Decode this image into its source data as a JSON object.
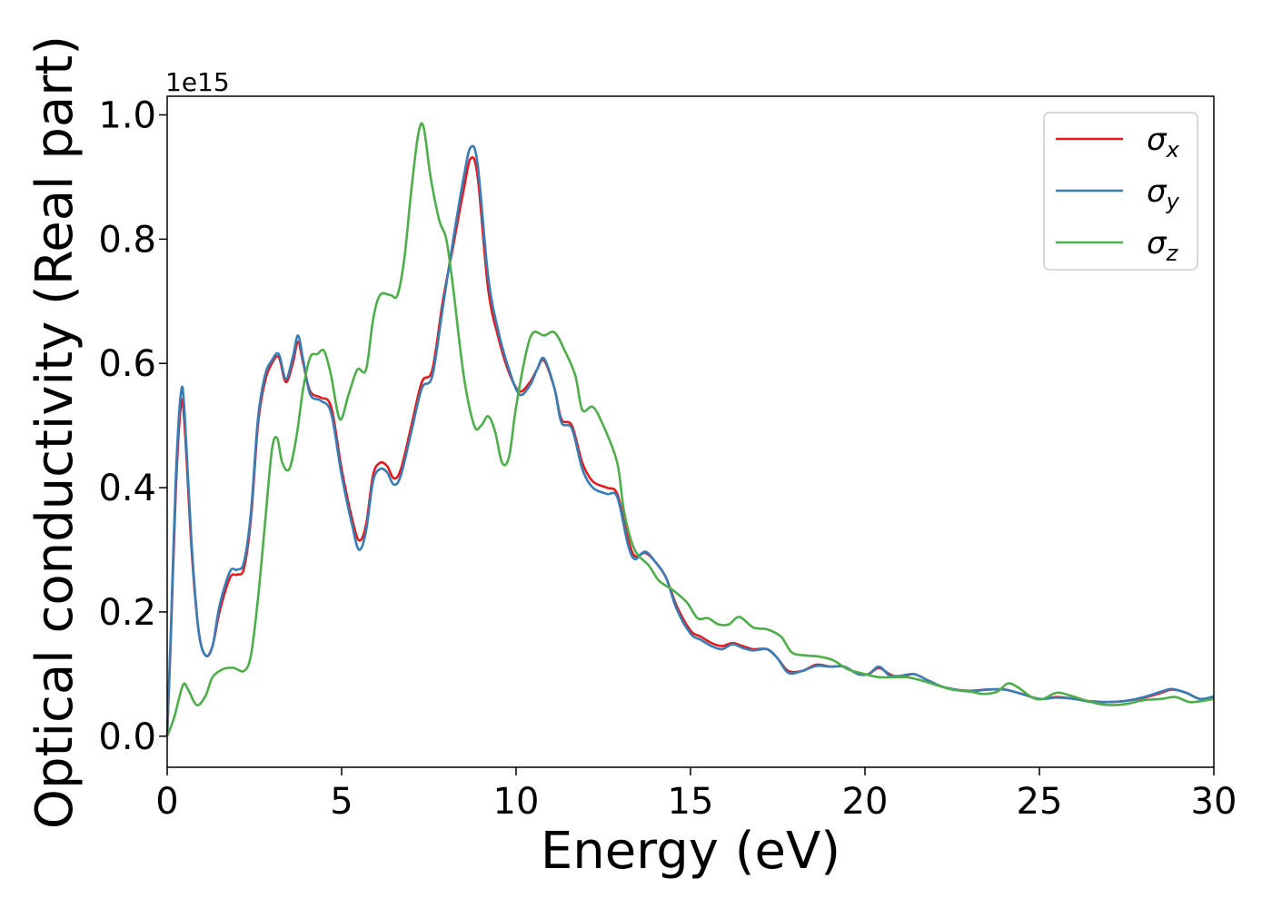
{
  "chart_data": {
    "type": "line",
    "title": "",
    "xlabel": "Energy (eV)",
    "ylabel": "Optical conductivity (Real part)",
    "y_offset_label": "1e15",
    "xlim": [
      0,
      30
    ],
    "ylim": [
      -0.05,
      1.03
    ],
    "x_ticks": [
      0,
      5,
      10,
      15,
      20,
      25,
      30
    ],
    "x_tick_labels": [
      "0",
      "5",
      "10",
      "15",
      "20",
      "25",
      "30"
    ],
    "y_ticks": [
      0.0,
      0.2,
      0.4,
      0.6,
      0.8,
      1.0
    ],
    "y_tick_labels": [
      "0.0",
      "0.2",
      "0.4",
      "0.6",
      "0.8",
      "1.0"
    ],
    "grid": false,
    "legend_position": "top-right",
    "series": [
      {
        "name": "σx",
        "symbol": "σ",
        "subscript": "x",
        "color": "#e41a1c",
        "points": [
          [
            0,
            0
          ],
          [
            0.1,
            0.15
          ],
          [
            0.25,
            0.4
          ],
          [
            0.4,
            0.535
          ],
          [
            0.5,
            0.5
          ],
          [
            0.7,
            0.3
          ],
          [
            0.9,
            0.17
          ],
          [
            1.1,
            0.13
          ],
          [
            1.3,
            0.145
          ],
          [
            1.5,
            0.2
          ],
          [
            1.8,
            0.255
          ],
          [
            2.0,
            0.26
          ],
          [
            2.2,
            0.27
          ],
          [
            2.4,
            0.35
          ],
          [
            2.6,
            0.5
          ],
          [
            2.8,
            0.57
          ],
          [
            3.0,
            0.6
          ],
          [
            3.2,
            0.61
          ],
          [
            3.4,
            0.57
          ],
          [
            3.6,
            0.6
          ],
          [
            3.75,
            0.635
          ],
          [
            3.9,
            0.6
          ],
          [
            4.1,
            0.555
          ],
          [
            4.4,
            0.545
          ],
          [
            4.7,
            0.53
          ],
          [
            5.0,
            0.43
          ],
          [
            5.3,
            0.35
          ],
          [
            5.5,
            0.315
          ],
          [
            5.7,
            0.34
          ],
          [
            5.9,
            0.42
          ],
          [
            6.1,
            0.44
          ],
          [
            6.3,
            0.435
          ],
          [
            6.5,
            0.415
          ],
          [
            6.7,
            0.43
          ],
          [
            7.0,
            0.5
          ],
          [
            7.3,
            0.57
          ],
          [
            7.6,
            0.59
          ],
          [
            7.9,
            0.7
          ],
          [
            8.2,
            0.79
          ],
          [
            8.5,
            0.88
          ],
          [
            8.7,
            0.93
          ],
          [
            8.9,
            0.9
          ],
          [
            9.2,
            0.72
          ],
          [
            9.5,
            0.64
          ],
          [
            9.8,
            0.585
          ],
          [
            10.1,
            0.555
          ],
          [
            10.4,
            0.57
          ],
          [
            10.6,
            0.59
          ],
          [
            10.8,
            0.605
          ],
          [
            11.1,
            0.56
          ],
          [
            11.3,
            0.51
          ],
          [
            11.6,
            0.5
          ],
          [
            11.9,
            0.44
          ],
          [
            12.2,
            0.41
          ],
          [
            12.6,
            0.4
          ],
          [
            12.9,
            0.39
          ],
          [
            13.2,
            0.32
          ],
          [
            13.4,
            0.29
          ],
          [
            13.7,
            0.295
          ],
          [
            14.0,
            0.28
          ],
          [
            14.3,
            0.255
          ],
          [
            14.6,
            0.21
          ],
          [
            15.0,
            0.17
          ],
          [
            15.3,
            0.16
          ],
          [
            15.6,
            0.15
          ],
          [
            15.9,
            0.145
          ],
          [
            16.2,
            0.15
          ],
          [
            16.5,
            0.145
          ],
          [
            16.8,
            0.14
          ],
          [
            17.2,
            0.14
          ],
          [
            17.5,
            0.125
          ],
          [
            17.8,
            0.105
          ],
          [
            18.2,
            0.105
          ],
          [
            18.6,
            0.115
          ],
          [
            19.0,
            0.112
          ],
          [
            19.4,
            0.112
          ],
          [
            19.8,
            0.1
          ],
          [
            20.1,
            0.1
          ],
          [
            20.4,
            0.11
          ],
          [
            20.7,
            0.1
          ],
          [
            21.0,
            0.095
          ],
          [
            21.4,
            0.1
          ],
          [
            21.8,
            0.09
          ],
          [
            22.2,
            0.08
          ],
          [
            22.6,
            0.075
          ],
          [
            23.0,
            0.073
          ],
          [
            23.5,
            0.075
          ],
          [
            24.0,
            0.075
          ],
          [
            24.5,
            0.068
          ],
          [
            25.0,
            0.06
          ],
          [
            25.5,
            0.063
          ],
          [
            26.0,
            0.06
          ],
          [
            26.5,
            0.056
          ],
          [
            27.0,
            0.055
          ],
          [
            27.5,
            0.057
          ],
          [
            28.0,
            0.062
          ],
          [
            28.5,
            0.07
          ],
          [
            28.8,
            0.075
          ],
          [
            29.2,
            0.07
          ],
          [
            29.6,
            0.06
          ],
          [
            30.0,
            0.063
          ]
        ]
      },
      {
        "name": "σy",
        "symbol": "σ",
        "subscript": "y",
        "color": "#377eb8",
        "points": [
          [
            0,
            0
          ],
          [
            0.1,
            0.16
          ],
          [
            0.25,
            0.42
          ],
          [
            0.4,
            0.555
          ],
          [
            0.5,
            0.52
          ],
          [
            0.7,
            0.31
          ],
          [
            0.9,
            0.17
          ],
          [
            1.1,
            0.13
          ],
          [
            1.3,
            0.145
          ],
          [
            1.5,
            0.21
          ],
          [
            1.8,
            0.265
          ],
          [
            2.0,
            0.268
          ],
          [
            2.2,
            0.28
          ],
          [
            2.4,
            0.36
          ],
          [
            2.6,
            0.51
          ],
          [
            2.8,
            0.58
          ],
          [
            3.0,
            0.605
          ],
          [
            3.2,
            0.615
          ],
          [
            3.4,
            0.575
          ],
          [
            3.6,
            0.61
          ],
          [
            3.75,
            0.645
          ],
          [
            3.9,
            0.605
          ],
          [
            4.1,
            0.55
          ],
          [
            4.4,
            0.54
          ],
          [
            4.7,
            0.52
          ],
          [
            5.0,
            0.42
          ],
          [
            5.3,
            0.34
          ],
          [
            5.5,
            0.3
          ],
          [
            5.7,
            0.33
          ],
          [
            5.9,
            0.41
          ],
          [
            6.1,
            0.43
          ],
          [
            6.3,
            0.425
          ],
          [
            6.5,
            0.405
          ],
          [
            6.7,
            0.42
          ],
          [
            7.0,
            0.49
          ],
          [
            7.3,
            0.56
          ],
          [
            7.6,
            0.58
          ],
          [
            7.9,
            0.69
          ],
          [
            8.2,
            0.8
          ],
          [
            8.5,
            0.9
          ],
          [
            8.7,
            0.948
          ],
          [
            8.9,
            0.92
          ],
          [
            9.2,
            0.74
          ],
          [
            9.5,
            0.65
          ],
          [
            9.8,
            0.59
          ],
          [
            10.1,
            0.55
          ],
          [
            10.4,
            0.565
          ],
          [
            10.6,
            0.59
          ],
          [
            10.8,
            0.608
          ],
          [
            11.1,
            0.56
          ],
          [
            11.3,
            0.505
          ],
          [
            11.6,
            0.495
          ],
          [
            11.9,
            0.43
          ],
          [
            12.2,
            0.4
          ],
          [
            12.6,
            0.39
          ],
          [
            12.9,
            0.385
          ],
          [
            13.2,
            0.31
          ],
          [
            13.4,
            0.285
          ],
          [
            13.7,
            0.297
          ],
          [
            14.0,
            0.28
          ],
          [
            14.3,
            0.255
          ],
          [
            14.6,
            0.205
          ],
          [
            15.0,
            0.165
          ],
          [
            15.3,
            0.155
          ],
          [
            15.6,
            0.145
          ],
          [
            15.9,
            0.14
          ],
          [
            16.2,
            0.148
          ],
          [
            16.5,
            0.142
          ],
          [
            16.8,
            0.138
          ],
          [
            17.2,
            0.14
          ],
          [
            17.5,
            0.125
          ],
          [
            17.8,
            0.102
          ],
          [
            18.2,
            0.105
          ],
          [
            18.6,
            0.113
          ],
          [
            19.0,
            0.112
          ],
          [
            19.4,
            0.112
          ],
          [
            19.8,
            0.1
          ],
          [
            20.1,
            0.1
          ],
          [
            20.4,
            0.112
          ],
          [
            20.7,
            0.098
          ],
          [
            21.0,
            0.097
          ],
          [
            21.4,
            0.1
          ],
          [
            21.8,
            0.09
          ],
          [
            22.2,
            0.08
          ],
          [
            22.6,
            0.075
          ],
          [
            23.0,
            0.072
          ],
          [
            23.5,
            0.075
          ],
          [
            24.0,
            0.075
          ],
          [
            24.5,
            0.068
          ],
          [
            25.0,
            0.06
          ],
          [
            25.5,
            0.062
          ],
          [
            26.0,
            0.06
          ],
          [
            26.5,
            0.055
          ],
          [
            27.0,
            0.055
          ],
          [
            27.5,
            0.057
          ],
          [
            28.0,
            0.063
          ],
          [
            28.5,
            0.072
          ],
          [
            28.8,
            0.076
          ],
          [
            29.2,
            0.07
          ],
          [
            29.6,
            0.06
          ],
          [
            30.0,
            0.064
          ]
        ]
      },
      {
        "name": "σz",
        "symbol": "σ",
        "subscript": "z",
        "color": "#4daf4a",
        "points": [
          [
            0,
            0
          ],
          [
            0.2,
            0.03
          ],
          [
            0.45,
            0.082
          ],
          [
            0.6,
            0.075
          ],
          [
            0.85,
            0.05
          ],
          [
            1.1,
            0.065
          ],
          [
            1.3,
            0.095
          ],
          [
            1.6,
            0.108
          ],
          [
            1.9,
            0.11
          ],
          [
            2.2,
            0.105
          ],
          [
            2.4,
            0.13
          ],
          [
            2.6,
            0.22
          ],
          [
            2.8,
            0.34
          ],
          [
            3.0,
            0.46
          ],
          [
            3.15,
            0.48
          ],
          [
            3.3,
            0.44
          ],
          [
            3.5,
            0.43
          ],
          [
            3.7,
            0.48
          ],
          [
            3.9,
            0.56
          ],
          [
            4.1,
            0.61
          ],
          [
            4.3,
            0.615
          ],
          [
            4.5,
            0.62
          ],
          [
            4.7,
            0.58
          ],
          [
            4.95,
            0.51
          ],
          [
            5.2,
            0.55
          ],
          [
            5.45,
            0.59
          ],
          [
            5.7,
            0.59
          ],
          [
            5.9,
            0.67
          ],
          [
            6.1,
            0.71
          ],
          [
            6.4,
            0.71
          ],
          [
            6.6,
            0.71
          ],
          [
            6.8,
            0.77
          ],
          [
            7.0,
            0.88
          ],
          [
            7.2,
            0.97
          ],
          [
            7.35,
            0.98
          ],
          [
            7.55,
            0.9
          ],
          [
            7.8,
            0.83
          ],
          [
            8.0,
            0.8
          ],
          [
            8.2,
            0.72
          ],
          [
            8.5,
            0.58
          ],
          [
            8.8,
            0.5
          ],
          [
            9.0,
            0.5
          ],
          [
            9.2,
            0.515
          ],
          [
            9.4,
            0.49
          ],
          [
            9.6,
            0.44
          ],
          [
            9.8,
            0.45
          ],
          [
            10.0,
            0.53
          ],
          [
            10.3,
            0.62
          ],
          [
            10.5,
            0.65
          ],
          [
            10.8,
            0.645
          ],
          [
            11.1,
            0.65
          ],
          [
            11.4,
            0.62
          ],
          [
            11.7,
            0.58
          ],
          [
            11.9,
            0.525
          ],
          [
            12.2,
            0.53
          ],
          [
            12.5,
            0.5
          ],
          [
            12.9,
            0.44
          ],
          [
            13.1,
            0.36
          ],
          [
            13.4,
            0.3
          ],
          [
            13.8,
            0.275
          ],
          [
            14.1,
            0.25
          ],
          [
            14.5,
            0.235
          ],
          [
            14.9,
            0.215
          ],
          [
            15.2,
            0.19
          ],
          [
            15.5,
            0.19
          ],
          [
            15.8,
            0.18
          ],
          [
            16.1,
            0.18
          ],
          [
            16.4,
            0.192
          ],
          [
            16.8,
            0.175
          ],
          [
            17.2,
            0.172
          ],
          [
            17.6,
            0.16
          ],
          [
            17.9,
            0.135
          ],
          [
            18.3,
            0.13
          ],
          [
            18.7,
            0.128
          ],
          [
            19.1,
            0.122
          ],
          [
            19.5,
            0.108
          ],
          [
            20.0,
            0.1
          ],
          [
            20.4,
            0.095
          ],
          [
            20.8,
            0.095
          ],
          [
            21.2,
            0.095
          ],
          [
            21.6,
            0.09
          ],
          [
            22.0,
            0.083
          ],
          [
            22.5,
            0.075
          ],
          [
            23.0,
            0.072
          ],
          [
            23.4,
            0.068
          ],
          [
            23.8,
            0.072
          ],
          [
            24.1,
            0.085
          ],
          [
            24.4,
            0.078
          ],
          [
            24.8,
            0.062
          ],
          [
            25.1,
            0.06
          ],
          [
            25.5,
            0.07
          ],
          [
            25.9,
            0.065
          ],
          [
            26.3,
            0.058
          ],
          [
            26.7,
            0.052
          ],
          [
            27.1,
            0.05
          ],
          [
            27.5,
            0.052
          ],
          [
            28.0,
            0.058
          ],
          [
            28.5,
            0.06
          ],
          [
            28.9,
            0.063
          ],
          [
            29.3,
            0.055
          ],
          [
            29.7,
            0.057
          ],
          [
            30.0,
            0.06
          ]
        ]
      }
    ]
  }
}
